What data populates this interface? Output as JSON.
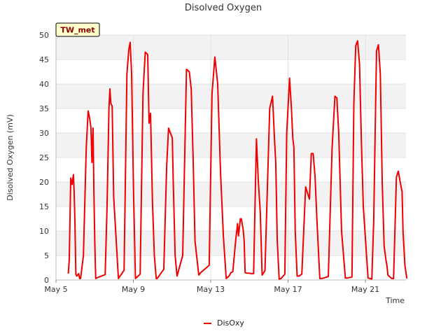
{
  "chart_data": {
    "type": "line",
    "title": "Disolved Oxygen",
    "xlabel": "Time",
    "ylabel": "Disolved Oxygen (mV)",
    "badge": "TW_met",
    "ylim": [
      0,
      50
    ],
    "yticks": [
      0,
      5,
      10,
      15,
      20,
      25,
      30,
      35,
      40,
      45,
      50
    ],
    "xlim": [
      0,
      18.1
    ],
    "xticks": [
      {
        "x": 0,
        "label": "May 5"
      },
      {
        "x": 4,
        "label": "May 9"
      },
      {
        "x": 8,
        "label": "May 13"
      },
      {
        "x": 12,
        "label": "May 17"
      },
      {
        "x": 16,
        "label": "May 21"
      }
    ],
    "grid": true,
    "legend_position": "bottom-center",
    "series": [
      {
        "name": "DisOxy",
        "color": "#ee0000",
        "x": [
          0.65,
          0.7,
          0.78,
          0.85,
          0.92,
          0.96,
          1.0,
          1.05,
          1.1,
          1.2,
          1.25,
          1.3,
          1.45,
          1.6,
          1.7,
          1.78,
          1.85,
          1.9,
          1.96,
          2.0,
          2.05,
          2.1,
          2.2,
          2.6,
          2.7,
          2.8,
          2.85,
          2.9,
          2.97,
          3.05,
          3.3,
          3.6,
          3.75,
          3.85,
          3.92,
          4.0,
          4.1,
          4.2,
          4.45,
          4.6,
          4.72,
          4.85,
          4.92,
          5.0,
          5.1,
          5.2,
          5.3,
          5.35,
          5.7,
          5.85,
          5.95,
          6.05,
          6.15,
          6.2,
          6.3,
          6.4,
          6.7,
          6.9,
          7.05,
          7.15,
          7.25,
          7.35,
          7.55,
          7.65,
          8.1,
          8.25,
          8.4,
          8.55,
          8.7,
          8.85,
          9.0,
          9.15,
          9.25,
          9.35,
          9.5,
          9.6,
          9.65,
          9.75,
          9.8,
          9.9,
          9.95,
          10.0,
          10.1,
          10.2,
          10.3,
          10.35,
          10.45,
          10.55,
          10.6,
          10.7,
          10.8,
          10.9,
          11.05,
          11.3,
          11.45,
          11.55,
          11.62,
          11.7,
          11.8,
          11.9,
          12.1,
          12.2,
          12.35,
          12.45,
          12.52,
          12.58,
          12.65,
          12.75,
          12.85,
          13.0,
          13.2,
          13.4,
          13.5,
          13.6,
          13.7,
          13.8,
          13.95,
          14.05,
          14.4,
          14.6,
          14.75,
          14.8,
          14.85,
          14.95,
          15.1,
          15.3,
          15.4,
          15.65,
          15.75,
          15.85,
          15.95,
          16.05,
          16.15,
          16.25,
          16.5,
          16.7,
          16.8,
          16.9,
          16.95,
          17.05,
          17.15,
          17.25,
          17.35
        ],
        "y": [
          1.3,
          4,
          20.8,
          19.5,
          21.5,
          18,
          12,
          1.2,
          0.8,
          1.3,
          0.3,
          0.3,
          5,
          27,
          34.5,
          33,
          31,
          24,
          31,
          19,
          8,
          0.3,
          0.5,
          1.1,
          15,
          35,
          39,
          36,
          35.5,
          17,
          0.3,
          2,
          42,
          47,
          48.5,
          42,
          18,
          0.3,
          1.2,
          38,
          46.5,
          46,
          32,
          34,
          16,
          5,
          0.3,
          0.3,
          2.2,
          23,
          31,
          30,
          29,
          20,
          5,
          0.8,
          5,
          43,
          42.5,
          39,
          25,
          8,
          1,
          1.5,
          3,
          38,
          45.5,
          40,
          22,
          9,
          0.3,
          0.8,
          1.5,
          1.7,
          8,
          11.5,
          9,
          12.5,
          12.5,
          10.2,
          8,
          1.5,
          1.4,
          1.4,
          1.3,
          1.3,
          1.3,
          20,
          28.8,
          20,
          14,
          1,
          1.9,
          35,
          37.5,
          29,
          24,
          8,
          0.2,
          0.3,
          1.2,
          30,
          41.2,
          35,
          29,
          27,
          10,
          0.8,
          0.8,
          1.2,
          19,
          16.5,
          25.8,
          25.8,
          21,
          12,
          0.3,
          0.3,
          0.7,
          27,
          37.5,
          37.3,
          37.2,
          30,
          10,
          0.4,
          0.4,
          0.6,
          36,
          47.8,
          48.8,
          44,
          28,
          15,
          0.4,
          0.2,
          12,
          35.5,
          46.8,
          48,
          42,
          20,
          7
        ],
        "x2": [
          17.35,
          17.45,
          17.5,
          17.55,
          17.75,
          17.85,
          17.95,
          18.0,
          18.1,
          18.2,
          18.3,
          18.35,
          18.45,
          18.55
        ],
        "y2": [
          7,
          4,
          3,
          1,
          0.3,
          0.3,
          14,
          21,
          22.2,
          20,
          18,
          10,
          3,
          0.3
        ]
      }
    ]
  }
}
